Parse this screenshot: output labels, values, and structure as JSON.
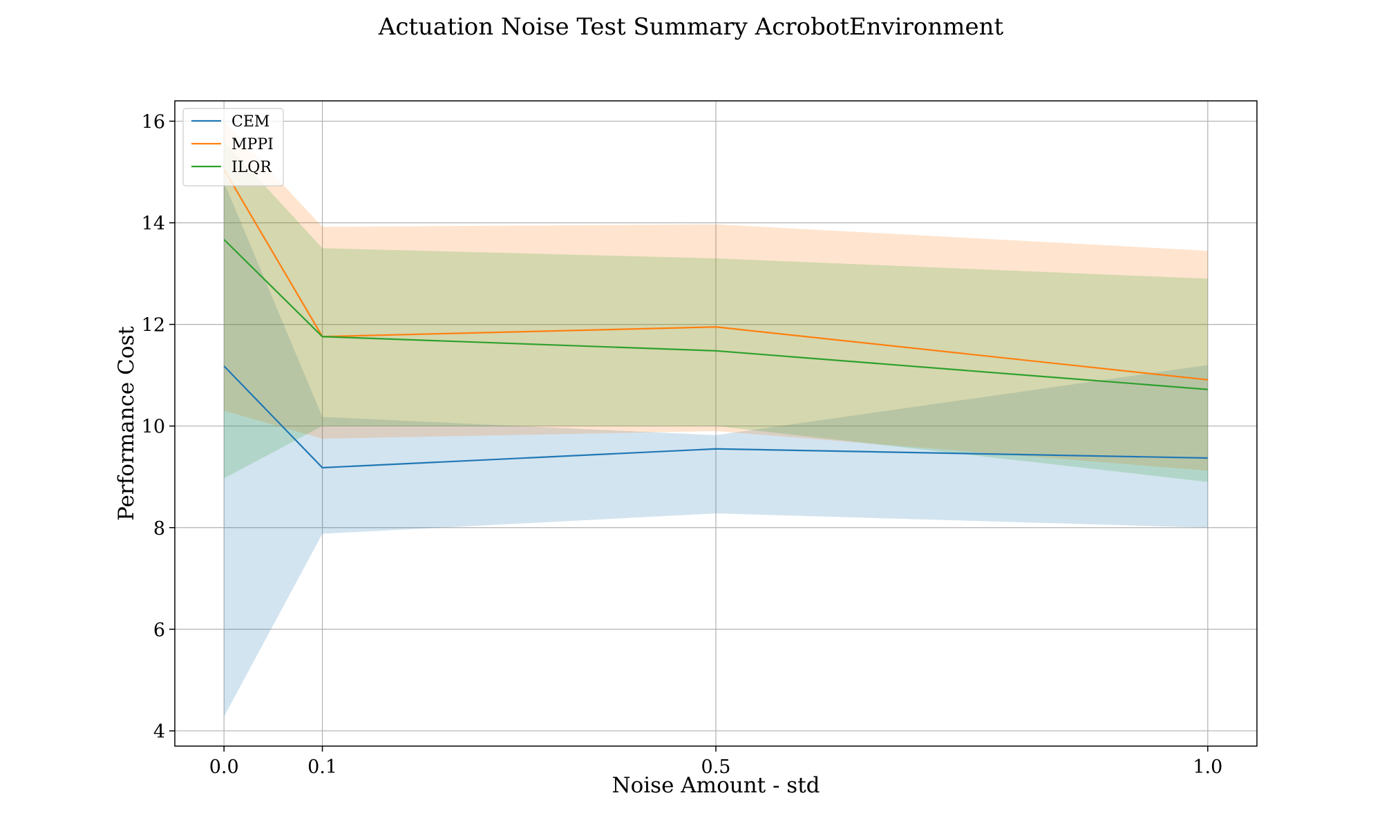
{
  "chart_data": {
    "type": "line",
    "title": "Actuation Noise Test Summary AcrobotEnvironment",
    "xlabel": "Noise Amount - std",
    "ylabel": "Performance Cost",
    "x": [
      0.0,
      0.1,
      0.5,
      1.0
    ],
    "x_tick_labels": [
      "0.0",
      "0.1",
      "0.5",
      "1.0"
    ],
    "y_ticks": [
      4,
      6,
      8,
      10,
      12,
      14,
      16
    ],
    "y_tick_labels": [
      "4",
      "6",
      "8",
      "10",
      "12",
      "14",
      "16"
    ],
    "xlim": [
      -0.05,
      1.05
    ],
    "ylim": [
      3.7,
      16.4
    ],
    "grid": true,
    "legend_position": "top-left",
    "series": [
      {
        "name": "CEM",
        "color": "#1f77b4",
        "values": [
          11.18,
          9.18,
          9.55,
          9.37
        ],
        "lower": [
          4.28,
          7.88,
          8.28,
          8.0
        ],
        "upper": [
          14.8,
          10.18,
          9.82,
          11.2
        ]
      },
      {
        "name": "MPPI",
        "color": "#ff7f0e",
        "values": [
          15.05,
          11.76,
          11.95,
          10.91
        ],
        "lower": [
          10.3,
          9.75,
          9.9,
          9.12
        ],
        "upper": [
          16.0,
          13.92,
          13.97,
          13.45
        ]
      },
      {
        "name": "ILQR",
        "color": "#2ca02c",
        "values": [
          13.67,
          11.76,
          11.48,
          10.72
        ],
        "lower": [
          8.97,
          10.0,
          10.0,
          8.9
        ],
        "upper": [
          15.6,
          13.5,
          13.3,
          12.9
        ]
      }
    ]
  }
}
